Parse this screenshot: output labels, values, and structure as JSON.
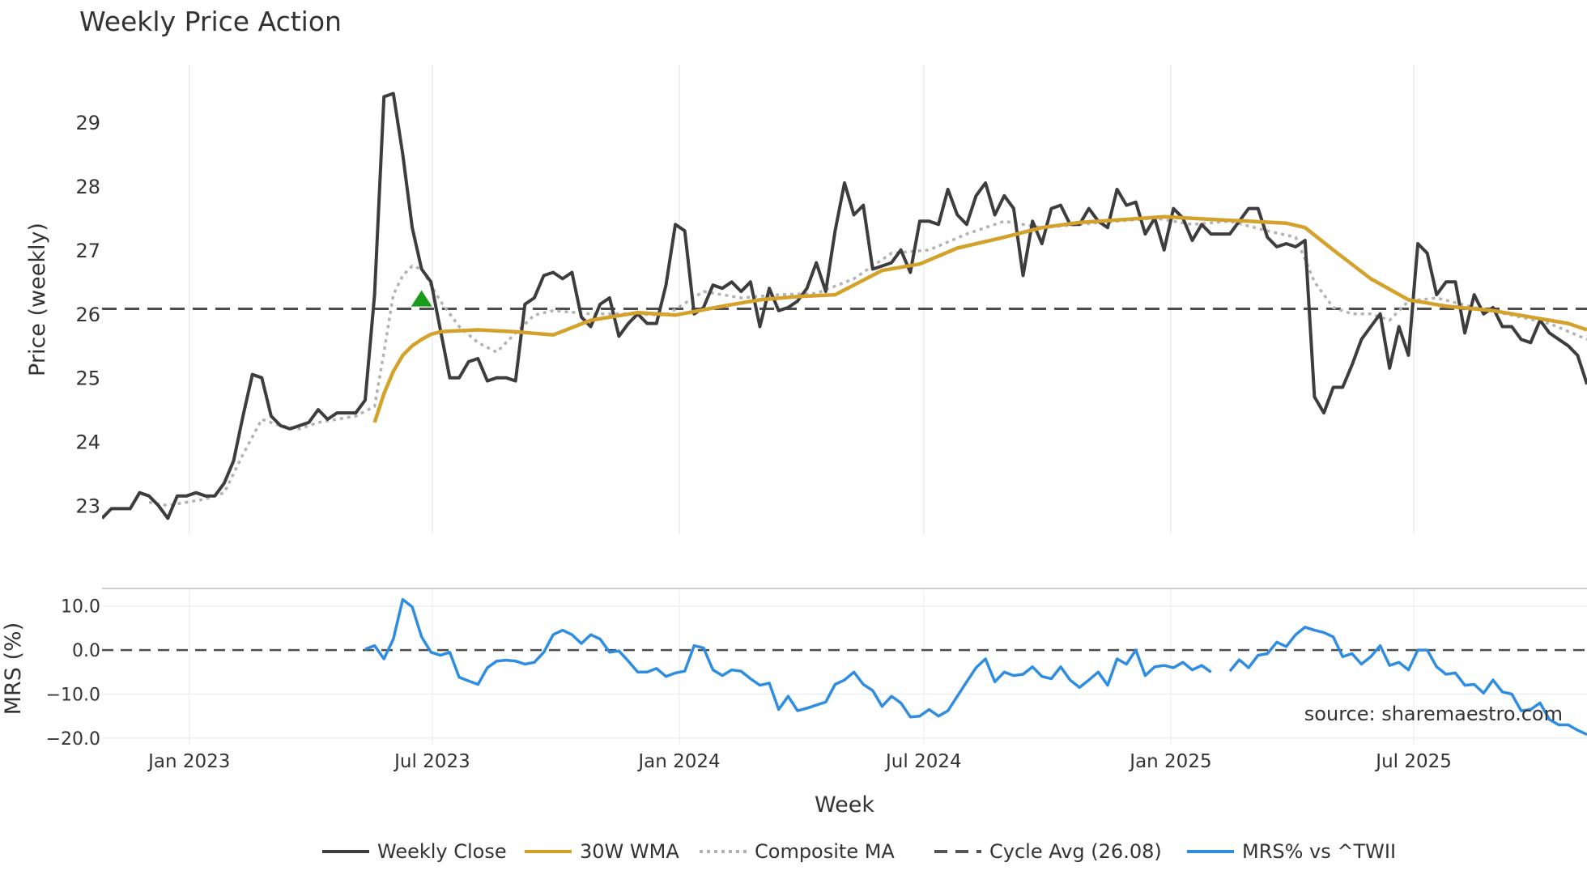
{
  "chart_data": {
    "type": "line",
    "title": "Weekly Price Action",
    "xlabel": "Week",
    "source": "source: sharemaestro.com",
    "x_ticks": [
      "Jan 2023",
      "Jul 2023",
      "Jan 2024",
      "Jul 2024",
      "Jan 2025",
      "Jul 2025"
    ],
    "x_range": [
      "2022-10-28",
      "2025-11-07"
    ],
    "price_panel": {
      "ylabel": "Price (weekly)",
      "ylim": [
        22.55,
        29.9
      ],
      "y_ticks": [
        23,
        24,
        25,
        26,
        27,
        28,
        29
      ],
      "cycle_avg": 26.08,
      "signal_marker": {
        "date": "2023-06-23",
        "value": 26.23,
        "symbol": "triangle-up",
        "color": "#1a9c1a"
      }
    },
    "mrs_panel": {
      "ylabel": "MRS (%)",
      "ylim": [
        -21.5,
        14.0
      ],
      "y_ticks": [
        "10.0",
        "0.0",
        "−10.0",
        "−20.0"
      ],
      "y_tick_values": [
        10,
        0,
        -10,
        -20
      ],
      "zero_line": 0
    },
    "legend": [
      {
        "label": "Weekly Close",
        "color": "#3d3d3d",
        "style": "solid"
      },
      {
        "label": "30W WMA",
        "color": "#d4a22a",
        "style": "solid"
      },
      {
        "label": "Composite MA",
        "color": "#b0b0b0",
        "style": "dotted"
      },
      {
        "label": "Cycle Avg (26.08)",
        "color": "#555555",
        "style": "dashed"
      },
      {
        "label": "MRS% vs ^TWII",
        "color": "#2e8de0",
        "style": "solid"
      }
    ],
    "series": [
      {
        "name": "Weekly Close",
        "dates": [
          "2022-10-28",
          "2022-11-04",
          "2022-11-11",
          "2022-11-18",
          "2022-11-25",
          "2022-12-02",
          "2022-12-09",
          "2022-12-16",
          "2022-12-23",
          "2022-12-30",
          "2023-01-06",
          "2023-01-13",
          "2023-01-20",
          "2023-01-27",
          "2023-02-03",
          "2023-02-10",
          "2023-02-17",
          "2023-02-24",
          "2023-03-03",
          "2023-03-10",
          "2023-03-17",
          "2023-03-24",
          "2023-03-31",
          "2023-04-07",
          "2023-04-14",
          "2023-04-21",
          "2023-04-28",
          "2023-05-05",
          "2023-05-12",
          "2023-05-19",
          "2023-05-26",
          "2023-06-02",
          "2023-06-09",
          "2023-06-16",
          "2023-06-23",
          "2023-06-30",
          "2023-07-07",
          "2023-07-14",
          "2023-07-21",
          "2023-07-28",
          "2023-08-04",
          "2023-08-11",
          "2023-08-18",
          "2023-08-25",
          "2023-09-01",
          "2023-09-08",
          "2023-09-15",
          "2023-09-22",
          "2023-09-29",
          "2023-10-06",
          "2023-10-13",
          "2023-10-20",
          "2023-10-27",
          "2023-11-03",
          "2023-11-10",
          "2023-11-17",
          "2023-11-24",
          "2023-12-01",
          "2023-12-08",
          "2023-12-15",
          "2023-12-22",
          "2023-12-29",
          "2024-01-05",
          "2024-01-12",
          "2024-01-19",
          "2024-01-26",
          "2024-02-02",
          "2024-02-09",
          "2024-02-16",
          "2024-02-23",
          "2024-03-01",
          "2024-03-08",
          "2024-03-15",
          "2024-03-22",
          "2024-03-29",
          "2024-04-05",
          "2024-04-12",
          "2024-04-19",
          "2024-04-26",
          "2024-05-03",
          "2024-05-10",
          "2024-05-17",
          "2024-05-24",
          "2024-05-31",
          "2024-06-07",
          "2024-06-14",
          "2024-06-21",
          "2024-06-28",
          "2024-07-05",
          "2024-07-12",
          "2024-07-19",
          "2024-07-26",
          "2024-08-02",
          "2024-08-09",
          "2024-08-16",
          "2024-08-23",
          "2024-08-30",
          "2024-09-06",
          "2024-09-13",
          "2024-09-20",
          "2024-09-27",
          "2024-10-04",
          "2024-10-11",
          "2024-10-18",
          "2024-10-25",
          "2024-11-01",
          "2024-11-08",
          "2024-11-15",
          "2024-11-22",
          "2024-11-29",
          "2024-12-06",
          "2024-12-13",
          "2024-12-20",
          "2024-12-27",
          "2025-01-03",
          "2025-01-10",
          "2025-01-17",
          "2025-01-24",
          "2025-01-31",
          "2025-02-07",
          "2025-02-14",
          "2025-02-21",
          "2025-02-28",
          "2025-03-07",
          "2025-03-14",
          "2025-03-21",
          "2025-03-28",
          "2025-04-04",
          "2025-04-11",
          "2025-04-18",
          "2025-04-25",
          "2025-05-02",
          "2025-05-09",
          "2025-05-16",
          "2025-05-23",
          "2025-05-30",
          "2025-06-06",
          "2025-06-13",
          "2025-06-20",
          "2025-06-27",
          "2025-07-04",
          "2025-07-11",
          "2025-07-18",
          "2025-07-25",
          "2025-08-01",
          "2025-08-08",
          "2025-08-15",
          "2025-08-22",
          "2025-08-29",
          "2025-09-05",
          "2025-09-12",
          "2025-09-19",
          "2025-09-26",
          "2025-10-03",
          "2025-10-10",
          "2025-10-17",
          "2025-10-24",
          "2025-10-31",
          "2025-11-07"
        ],
        "values": [
          22.8,
          22.95,
          22.95,
          22.95,
          23.2,
          23.15,
          23.0,
          22.8,
          23.15,
          23.15,
          23.2,
          23.15,
          23.15,
          23.35,
          23.7,
          24.4,
          25.05,
          25.0,
          24.4,
          24.25,
          24.2,
          24.25,
          24.3,
          24.5,
          24.35,
          24.45,
          24.45,
          24.45,
          24.65,
          26.3,
          29.4,
          29.45,
          28.5,
          27.35,
          26.7,
          26.5,
          25.75,
          25.0,
          25.0,
          25.25,
          25.3,
          24.95,
          25.0,
          25.0,
          24.95,
          26.15,
          26.25,
          26.6,
          26.65,
          26.55,
          26.65,
          25.95,
          25.8,
          26.15,
          26.25,
          25.65,
          25.85,
          26.0,
          25.85,
          25.85,
          26.45,
          27.4,
          27.3,
          26.0,
          26.1,
          26.45,
          26.4,
          26.5,
          26.35,
          26.5,
          25.8,
          26.4,
          26.05,
          26.1,
          26.2,
          26.4,
          26.8,
          26.35,
          27.3,
          28.05,
          27.55,
          27.7,
          26.7,
          26.75,
          26.8,
          27.0,
          26.65,
          27.45,
          27.45,
          27.4,
          27.95,
          27.55,
          27.4,
          27.85,
          28.05,
          27.55,
          27.85,
          27.65,
          26.6,
          27.45,
          27.1,
          27.65,
          27.7,
          27.4,
          27.4,
          27.65,
          27.45,
          27.35,
          27.95,
          27.7,
          27.75,
          27.25,
          27.5,
          27.0,
          27.65,
          27.5,
          27.15,
          27.4,
          27.25,
          27.25,
          27.25,
          27.45,
          27.65,
          27.65,
          27.2,
          27.05,
          27.1,
          27.05,
          27.15,
          24.7,
          24.45,
          24.85,
          24.85,
          25.2,
          25.6,
          25.8,
          26.0,
          25.15,
          25.8,
          25.35,
          27.1,
          26.95,
          26.3,
          26.5,
          26.5,
          25.7,
          26.3,
          26.0,
          26.1,
          25.8,
          25.8,
          25.6,
          25.55,
          25.9,
          25.7,
          25.6,
          25.5,
          25.35,
          24.9
        ]
      },
      {
        "name": "30W WMA",
        "dates": [
          "2023-05-19",
          "2023-05-26",
          "2023-06-02",
          "2023-06-09",
          "2023-06-16",
          "2023-06-23",
          "2023-06-30",
          "2023-07-07",
          "2023-07-14",
          "2023-08-04",
          "2023-09-01",
          "2023-09-29",
          "2023-10-27",
          "2023-12-01",
          "2023-12-29",
          "2024-02-02",
          "2024-03-01",
          "2024-03-29",
          "2024-04-26",
          "2024-05-31",
          "2024-06-28",
          "2024-07-26",
          "2024-08-30",
          "2024-09-27",
          "2024-10-25",
          "2024-11-29",
          "2024-12-27",
          "2025-01-31",
          "2025-02-28",
          "2025-03-28",
          "2025-04-11",
          "2025-05-02",
          "2025-05-30",
          "2025-06-27",
          "2025-07-25",
          "2025-08-29",
          "2025-09-26",
          "2025-10-24",
          "2025-11-07"
        ],
        "values": [
          24.3,
          24.75,
          25.1,
          25.35,
          25.5,
          25.6,
          25.68,
          25.72,
          25.73,
          25.75,
          25.72,
          25.67,
          25.9,
          26.02,
          25.98,
          26.12,
          26.22,
          26.27,
          26.3,
          26.68,
          26.78,
          27.03,
          27.2,
          27.35,
          27.43,
          27.48,
          27.52,
          27.48,
          27.45,
          27.42,
          27.35,
          27.0,
          26.55,
          26.22,
          26.12,
          26.05,
          25.95,
          25.85,
          25.75
        ]
      },
      {
        "name": "Composite MA",
        "dates": [
          "2022-12-02",
          "2022-12-16",
          "2022-12-30",
          "2023-01-13",
          "2023-01-27",
          "2023-02-10",
          "2023-02-24",
          "2023-03-10",
          "2023-03-24",
          "2023-04-07",
          "2023-04-21",
          "2023-05-05",
          "2023-05-19",
          "2023-05-26",
          "2023-06-02",
          "2023-06-09",
          "2023-06-16",
          "2023-06-23",
          "2023-06-30",
          "2023-07-07",
          "2023-07-21",
          "2023-08-04",
          "2023-08-18",
          "2023-09-01",
          "2023-09-15",
          "2023-09-29",
          "2023-10-27",
          "2023-11-24",
          "2023-12-22",
          "2024-01-19",
          "2024-02-16",
          "2024-03-15",
          "2024-04-12",
          "2024-05-10",
          "2024-06-07",
          "2024-07-05",
          "2024-08-02",
          "2024-08-30",
          "2024-09-27",
          "2024-10-25",
          "2024-11-22",
          "2024-12-20",
          "2025-01-17",
          "2025-02-14",
          "2025-03-14",
          "2025-04-04",
          "2025-04-18",
          "2025-05-02",
          "2025-05-16",
          "2025-05-30",
          "2025-06-13",
          "2025-06-27",
          "2025-07-18",
          "2025-08-15",
          "2025-09-12",
          "2025-10-10",
          "2025-11-07"
        ],
        "values": [
          23.05,
          23.0,
          23.05,
          23.1,
          23.2,
          23.8,
          24.35,
          24.25,
          24.2,
          24.3,
          24.35,
          24.4,
          24.55,
          25.4,
          26.3,
          26.6,
          26.75,
          26.7,
          26.45,
          26.2,
          25.8,
          25.55,
          25.4,
          25.7,
          25.98,
          26.05,
          26.0,
          26.0,
          25.98,
          26.35,
          26.25,
          26.3,
          26.32,
          26.55,
          26.95,
          27.0,
          27.25,
          27.45,
          27.35,
          27.4,
          27.45,
          27.5,
          27.4,
          27.45,
          27.3,
          27.2,
          26.5,
          26.1,
          26.0,
          26.0,
          25.9,
          26.2,
          26.25,
          26.1,
          25.98,
          25.85,
          25.6
        ]
      },
      {
        "name": "MRS% vs ^TWII",
        "dates": [
          "2023-05-12",
          "2023-05-19",
          "2023-05-26",
          "2023-06-02",
          "2023-06-09",
          "2023-06-16",
          "2023-06-23",
          "2023-06-30",
          "2023-07-07",
          "2023-07-14",
          "2023-07-21",
          "2023-07-28",
          "2023-08-04",
          "2023-08-11",
          "2023-08-18",
          "2023-08-25",
          "2023-09-01",
          "2023-09-08",
          "2023-09-15",
          "2023-09-22",
          "2023-09-29",
          "2023-10-06",
          "2023-10-13",
          "2023-10-20",
          "2023-10-27",
          "2023-11-03",
          "2023-11-10",
          "2023-11-17",
          "2023-11-24",
          "2023-12-01",
          "2023-12-08",
          "2023-12-15",
          "2023-12-22",
          "2023-12-29",
          "2024-01-05",
          "2024-01-12",
          "2024-01-19",
          "2024-01-26",
          "2024-02-02",
          "2024-02-09",
          "2024-02-16",
          "2024-02-23",
          "2024-03-01",
          "2024-03-08",
          "2024-03-15",
          "2024-03-22",
          "2024-03-29",
          "2024-04-05",
          "2024-04-12",
          "2024-04-19",
          "2024-04-26",
          "2024-05-03",
          "2024-05-10",
          "2024-05-17",
          "2024-05-24",
          "2024-05-31",
          "2024-06-07",
          "2024-06-14",
          "2024-06-21",
          "2024-06-28",
          "2024-07-05",
          "2024-07-12",
          "2024-07-19",
          "2024-07-26",
          "2024-08-02",
          "2024-08-09",
          "2024-08-16",
          "2024-08-23",
          "2024-08-30",
          "2024-09-06",
          "2024-09-13",
          "2024-09-20",
          "2024-09-27",
          "2024-10-04",
          "2024-10-11",
          "2024-10-18",
          "2024-10-25",
          "2024-11-01",
          "2024-11-08",
          "2024-11-15",
          "2024-11-22",
          "2024-11-29",
          "2024-12-06",
          "2024-12-13",
          "2024-12-20",
          "2024-12-27",
          "2025-01-03",
          "2025-01-10",
          "2025-01-17",
          "2025-01-24",
          "2025-01-31",
          "2025-02-07",
          "2025-02-14",
          "2025-02-21",
          "2025-02-28",
          "2025-03-07",
          "2025-03-14",
          "2025-03-21",
          "2025-03-28",
          "2025-04-04",
          "2025-04-11",
          "2025-04-18",
          "2025-04-25",
          "2025-05-02",
          "2025-05-09",
          "2025-05-16",
          "2025-05-23",
          "2025-05-30",
          "2025-06-06",
          "2025-06-13",
          "2025-06-20",
          "2025-06-27",
          "2025-07-04",
          "2025-07-11",
          "2025-07-18",
          "2025-07-25",
          "2025-08-01",
          "2025-08-08",
          "2025-08-15",
          "2025-08-22",
          "2025-08-29",
          "2025-09-05",
          "2025-09-12",
          "2025-09-19",
          "2025-09-26",
          "2025-10-03",
          "2025-10-10",
          "2025-10-17",
          "2025-10-24",
          "2025-10-31",
          "2025-11-07"
        ],
        "values": [
          0.2,
          1.0,
          -2.0,
          2.5,
          11.5,
          9.8,
          3.0,
          -0.5,
          -1.2,
          -0.5,
          -6.2,
          -7.0,
          -7.8,
          -4.0,
          -2.5,
          -2.3,
          -2.5,
          -3.2,
          -2.8,
          -0.5,
          3.5,
          4.5,
          3.5,
          1.5,
          3.5,
          2.5,
          -0.5,
          -0.2,
          -2.5,
          -5.0,
          -5.0,
          -4.2,
          -6.0,
          -5.2,
          -4.8,
          1.0,
          0.5,
          -4.5,
          -5.8,
          -4.5,
          -4.8,
          -6.5,
          -8.0,
          -7.5,
          -13.5,
          -10.5,
          -13.8,
          -13.2,
          -12.5,
          -11.8,
          -7.8,
          -6.8,
          -5.0,
          -7.8,
          -9.2,
          -12.8,
          -10.5,
          -12.0,
          -15.2,
          -15.0,
          -13.5,
          -15.0,
          -13.8,
          -10.5,
          -7.2,
          -4.0,
          -2.0,
          -7.2,
          -5.0,
          -5.8,
          -5.5,
          -3.8,
          -6.0,
          -6.5,
          -3.8,
          -6.8,
          -8.5,
          -6.8,
          -5.0,
          -8.0,
          -2.0,
          -3.2,
          0.0,
          -5.8,
          -3.8,
          -3.5,
          -4.0,
          -2.8,
          -4.5,
          -3.5,
          -5.0,
          null,
          -4.8,
          -2.2,
          -4.0,
          -1.2,
          -0.8,
          1.8,
          0.8,
          3.5,
          5.2,
          4.5,
          4.0,
          3.0,
          -1.5,
          -0.8,
          -3.2,
          -1.5,
          1.0,
          -3.5,
          -2.8,
          -4.5,
          0.0,
          0.0,
          -3.8,
          -5.5,
          -5.2,
          -8.0,
          -7.8,
          -9.8,
          -6.8,
          -9.5,
          -10.0,
          -13.8,
          -13.5,
          -12.0,
          -15.8,
          -17.0,
          -17.0,
          -18.2,
          -19.2
        ]
      }
    ]
  }
}
